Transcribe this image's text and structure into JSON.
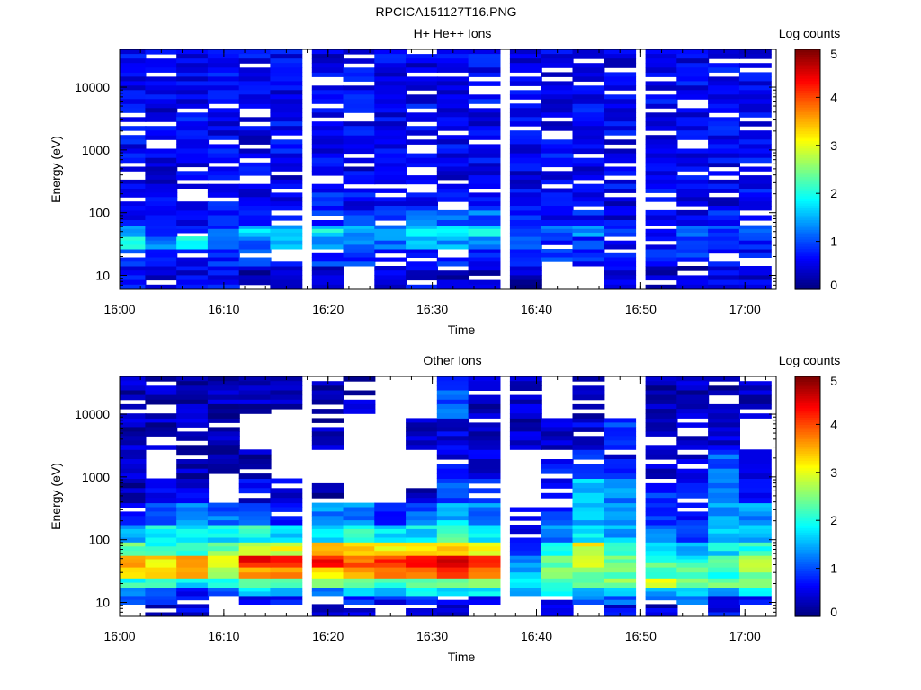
{
  "figure_title": "RPCICA151127T16.PNG",
  "chart_data": [
    {
      "type": "heatmap",
      "title": "H+ He++ Ions",
      "xlabel": "Time",
      "ylabel": "Energy (eV)",
      "x_ticks": [
        "16:00",
        "16:10",
        "16:20",
        "16:30",
        "16:40",
        "16:50",
        "17:00"
      ],
      "y_ticks": [
        "10",
        "100",
        "1000",
        "10000"
      ],
      "y_scale": "log",
      "xlim": [
        "16:00",
        "17:03"
      ],
      "ylim": [
        6,
        40000
      ],
      "colorbar": {
        "label": "Log counts",
        "ticks": [
          "0",
          "1",
          "2",
          "3",
          "4",
          "5"
        ],
        "range": [
          0,
          5
        ]
      },
      "time_bins": [
        "16:01",
        "16:04",
        "16:07",
        "16:10",
        "16:13",
        "16:16",
        "16:20",
        "16:23",
        "16:26",
        "16:29",
        "16:32",
        "16:35",
        "16:39",
        "16:42",
        "16:45",
        "16:48",
        "16:52",
        "16:55",
        "16:58",
        "17:01"
      ],
      "energy_bands": [
        {
          "energy": "10",
          "values": [
            0.7,
            0.3,
            0.5,
            0.6,
            0.3,
            0.4,
            0.3,
            null,
            0.4,
            0.5,
            0.3,
            0.4,
            0.3,
            null,
            null,
            0.6,
            0.4,
            0.3,
            0.5,
            0.4
          ]
        },
        {
          "energy": "20",
          "values": [
            0.8,
            0.7,
            0.6,
            0.8,
            0.9,
            0.7,
            0.8,
            0.9,
            0.8,
            0.7,
            0.8,
            0.6,
            0.7,
            0.8,
            0.7,
            0.6,
            0.7,
            0.8,
            0.7,
            0.6
          ]
        },
        {
          "energy": "35",
          "values": [
            1.9,
            1.3,
            1.8,
            1.0,
            1.2,
            1.6,
            1.4,
            1.2,
            1.2,
            1.5,
            1.4,
            1.2,
            0.9,
            0.8,
            0.8,
            0.6,
            0.7,
            0.8,
            0.7,
            0.8
          ]
        },
        {
          "energy": "50",
          "values": [
            1.4,
            1.0,
            0.9,
            1.0,
            1.7,
            1.4,
            1.8,
            1.5,
            1.3,
            1.7,
            1.9,
            1.8,
            0.7,
            1.0,
            1.3,
            0.9,
            0.8,
            1.0,
            0.9,
            1.0
          ]
        },
        {
          "energy": "80",
          "values": [
            0.6,
            0.7,
            0.6,
            0.8,
            0.9,
            0.7,
            0.8,
            1.0,
            0.8,
            1.1,
            1.0,
            1.1,
            0.7,
            0.6,
            0.7,
            0.5,
            0.6,
            0.6,
            0.7,
            0.6
          ]
        },
        {
          "energy": "150",
          "values": [
            0.6,
            0.5,
            0.6,
            0.7,
            0.6,
            0.6,
            0.7,
            0.6,
            0.7,
            0.7,
            0.6,
            0.7,
            0.6,
            0.5,
            0.6,
            0.5,
            0.6,
            0.6,
            0.5,
            0.6
          ]
        },
        {
          "energy": "400",
          "values": [
            0.6,
            0.5,
            0.5,
            0.6,
            0.6,
            0.5,
            0.6,
            0.5,
            0.6,
            0.6,
            0.5,
            0.6,
            0.5,
            0.6,
            0.5,
            0.6,
            0.5,
            0.6,
            0.5,
            0.6
          ]
        },
        {
          "energy": "1000",
          "values": [
            0.6,
            0.6,
            0.5,
            0.6,
            0.5,
            0.6,
            0.6,
            0.5,
            0.6,
            0.5,
            0.6,
            0.6,
            0.5,
            0.6,
            0.6,
            0.5,
            0.6,
            0.5,
            0.6,
            0.6
          ]
        },
        {
          "energy": "3000",
          "values": [
            0.6,
            0.5,
            0.6,
            0.6,
            0.5,
            0.6,
            0.5,
            0.6,
            0.5,
            0.6,
            0.6,
            0.5,
            0.6,
            0.5,
            0.6,
            0.6,
            0.5,
            0.6,
            0.6,
            0.5
          ]
        },
        {
          "energy": "10000",
          "values": [
            0.6,
            0.6,
            0.5,
            0.6,
            0.6,
            0.5,
            0.6,
            0.6,
            0.5,
            0.6,
            0.5,
            0.6,
            0.6,
            0.5,
            0.6,
            0.5,
            0.6,
            0.6,
            0.5,
            0.6
          ]
        },
        {
          "energy": "30000",
          "values": [
            0.6,
            0.5,
            0.6,
            0.5,
            0.6,
            0.6,
            0.5,
            0.6,
            0.6,
            0.5,
            0.6,
            0.6,
            0.5,
            0.6,
            0.6,
            0.5,
            0.6,
            0.5,
            0.6,
            0.6
          ]
        }
      ]
    },
    {
      "type": "heatmap",
      "title": "Other Ions",
      "xlabel": "Time",
      "ylabel": "Energy (eV)",
      "x_ticks": [
        "16:00",
        "16:10",
        "16:20",
        "16:30",
        "16:40",
        "16:50",
        "17:00"
      ],
      "y_ticks": [
        "10",
        "100",
        "1000",
        "10000"
      ],
      "y_scale": "log",
      "xlim": [
        "16:00",
        "17:03"
      ],
      "ylim": [
        6,
        40000
      ],
      "colorbar": {
        "label": "Log counts",
        "ticks": [
          "0",
          "1",
          "2",
          "3",
          "4",
          "5"
        ],
        "range": [
          0,
          5
        ]
      },
      "time_bins": [
        "16:01",
        "16:04",
        "16:07",
        "16:10",
        "16:13",
        "16:16",
        "16:20",
        "16:23",
        "16:26",
        "16:29",
        "16:32",
        "16:35",
        "16:39",
        "16:42",
        "16:45",
        "16:48",
        "16:52",
        "16:55",
        "16:58",
        "17:01"
      ],
      "energy_bands": [
        {
          "energy": "8",
          "values": [
            null,
            0.4,
            0.5,
            null,
            null,
            null,
            0.4,
            0.4,
            null,
            0.5,
            0.3,
            null,
            null,
            0.4,
            null,
            0.5,
            0.4,
            null,
            0.6,
            null
          ]
        },
        {
          "energy": "11",
          "values": [
            1.0,
            1.1,
            0.7,
            null,
            0.5,
            0.7,
            null,
            0.7,
            0.6,
            0.7,
            0.6,
            0.7,
            null,
            0.6,
            1.2,
            1.1,
            0.9,
            1.0,
            0.6,
            0.7
          ]
        },
        {
          "energy": "15",
          "values": [
            1.2,
            1.0,
            0.7,
            1.2,
            1.7,
            1.7,
            1.4,
            1.7,
            1.6,
            1.8,
            1.7,
            1.7,
            1.6,
            1.8,
            1.4,
            1.7,
            1.6,
            1.6,
            1.5,
            1.7
          ]
        },
        {
          "energy": "20",
          "values": [
            2.0,
            2.2,
            1.8,
            2.1,
            2.6,
            2.4,
            2.5,
            2.3,
            2.1,
            2.4,
            2.5,
            2.3,
            1.9,
            2.0,
            2.4,
            2.6,
            2.8,
            2.6,
            2.6,
            2.7
          ]
        },
        {
          "energy": "30",
          "values": [
            3.2,
            3.3,
            3.5,
            2.9,
            3.6,
            3.6,
            3.4,
            3.6,
            3.6,
            4.0,
            4.0,
            3.8,
            1.4,
            2.8,
            2.6,
            2.4,
            2.2,
            2.4,
            2.0,
            2.5
          ]
        },
        {
          "energy": "45",
          "values": [
            3.5,
            3.2,
            3.6,
            3.2,
            4.3,
            4.2,
            4.3,
            3.9,
            4.1,
            4.2,
            4.4,
            4.2,
            1.2,
            2.4,
            2.7,
            2.5,
            2.2,
            2.0,
            2.2,
            2.6
          ]
        },
        {
          "energy": "70",
          "values": [
            2.3,
            2.1,
            2.2,
            2.4,
            2.8,
            3.0,
            3.3,
            3.2,
            3.1,
            3.3,
            3.5,
            3.1,
            0.8,
            1.8,
            3.0,
            2.0,
            1.6,
            1.5,
            1.8,
            2.0
          ]
        },
        {
          "energy": "120",
          "values": [
            1.4,
            1.9,
            1.7,
            1.8,
            2.0,
            1.6,
            1.8,
            2.0,
            1.7,
            1.8,
            2.2,
            1.9,
            0.7,
            1.2,
            1.8,
            1.5,
            1.3,
            1.0,
            1.5,
            1.6
          ]
        },
        {
          "energy": "250",
          "values": [
            0.6,
            1.0,
            1.2,
            1.1,
            1.2,
            0.8,
            1.3,
            1.3,
            0.9,
            1.1,
            1.6,
            1.2,
            0.5,
            0.9,
            1.6,
            1.3,
            0.9,
            0.7,
            1.3,
            1.4
          ]
        },
        {
          "energy": "600",
          "values": [
            0.3,
            0.5,
            0.6,
            null,
            0.5,
            0.5,
            0.3,
            null,
            null,
            0.4,
            1.0,
            0.7,
            null,
            0.4,
            1.6,
            1.3,
            0.8,
            0.6,
            1.3,
            0.6
          ]
        },
        {
          "energy": "1500",
          "values": [
            0.3,
            null,
            0.3,
            0.3,
            0.3,
            null,
            null,
            null,
            null,
            null,
            0.5,
            0.4,
            null,
            0.6,
            0.8,
            0.6,
            0.4,
            0.5,
            1.1,
            0.3
          ]
        },
        {
          "energy": "5000",
          "values": [
            0.3,
            0.3,
            0.3,
            0.3,
            null,
            null,
            0.3,
            null,
            null,
            0.3,
            0.5,
            0.3,
            0.3,
            0.4,
            0.5,
            1.0,
            0.4,
            0.3,
            0.4,
            null
          ]
        },
        {
          "energy": "15000",
          "values": [
            0.3,
            0.3,
            0.3,
            0.3,
            0.3,
            0.3,
            0.3,
            0.3,
            null,
            null,
            1.0,
            0.3,
            0.3,
            null,
            0.3,
            null,
            0.3,
            0.3,
            0.3,
            0.3
          ]
        }
      ]
    }
  ]
}
